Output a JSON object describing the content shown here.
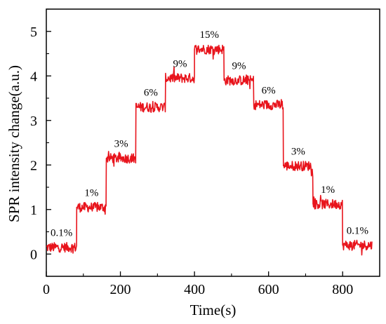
{
  "chart_data": {
    "type": "line",
    "title": "",
    "xlabel": "Time(s)",
    "ylabel": "SPR intensity change(a.u.)",
    "xlim": [
      0,
      900
    ],
    "ylim": [
      -0.5,
      5.5
    ],
    "xticks": [
      0,
      200,
      400,
      600,
      800
    ],
    "yticks": [
      0,
      1,
      2,
      3,
      4,
      5
    ],
    "grid": false,
    "legend": "none",
    "series": [
      {
        "color": "#e8141c",
        "segments": [
          {
            "x_start": 0,
            "x_end": 82,
            "y": 0.15,
            "label": "0.1%"
          },
          {
            "x_start": 82,
            "x_end": 162,
            "y": 1.05,
            "label": "1%"
          },
          {
            "x_start": 162,
            "x_end": 242,
            "y": 2.15,
            "label": "3%"
          },
          {
            "x_start": 242,
            "x_end": 322,
            "y": 3.3,
            "label": "6%"
          },
          {
            "x_start": 322,
            "x_end": 400,
            "y": 3.95,
            "label": "9%"
          },
          {
            "x_start": 400,
            "x_end": 480,
            "y": 4.6,
            "label": "15%"
          },
          {
            "x_start": 480,
            "x_end": 560,
            "y": 3.9,
            "label": "9%"
          },
          {
            "x_start": 560,
            "x_end": 640,
            "y": 3.35,
            "label": "6%"
          },
          {
            "x_start": 640,
            "x_end": 720,
            "y": 1.98,
            "label": "3%"
          },
          {
            "x_start": 720,
            "x_end": 800,
            "y": 1.12,
            "label": "1%"
          },
          {
            "x_start": 800,
            "x_end": 880,
            "y": 0.2,
            "label": "0.1%"
          }
        ]
      }
    ]
  }
}
